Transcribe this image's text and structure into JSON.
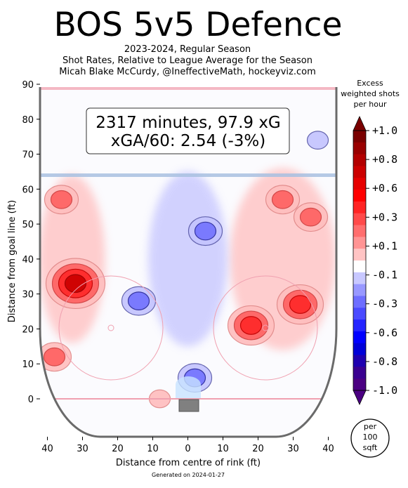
{
  "chart_data": {
    "type": "heatmap",
    "title": "BOS 5v5 Defence",
    "subtitle_lines": [
      "2023-2024, Regular Season",
      "Shot Rates, Relative to League Average for the Season",
      "Micah Blake McCurdy, @IneffectiveMath, hockeyviz.com"
    ],
    "annotation_lines": [
      "2317 minutes, 97.9 xG",
      "xGA/60: 2.54 (-3%)"
    ],
    "xlabel": "Distance from centre of rink (ft)",
    "ylabel": "Distance from goal line (ft)",
    "xlim": [
      -42.5,
      42.5
    ],
    "ylim": [
      -11,
      90
    ],
    "x_ticks": [
      -40,
      -30,
      -20,
      -10,
      0,
      10,
      20,
      30,
      40
    ],
    "x_tick_labels": [
      "40",
      "30",
      "20",
      "10",
      "0",
      "10",
      "20",
      "30",
      "40"
    ],
    "y_ticks": [
      0,
      10,
      20,
      30,
      40,
      50,
      60,
      70,
      80,
      90
    ],
    "y_tick_labels": [
      "0",
      "10",
      "20",
      "30",
      "40",
      "50",
      "60",
      "70",
      "80",
      "90"
    ],
    "grid": false,
    "colorbar": {
      "title_lines": [
        "Excess",
        "weighted shots",
        "per hour"
      ],
      "range": [
        -1.0,
        1.0
      ],
      "tick_values": [
        1.0,
        0.8,
        0.6,
        0.3,
        0.1,
        -0.1,
        -0.3,
        -0.6,
        -0.8,
        -1.0
      ],
      "tick_labels": [
        "+1.0",
        "+0.8",
        "+0.6",
        "+0.3",
        "+0.1",
        "-0.1",
        "-0.3",
        "-0.6",
        "-0.8",
        "-1.0"
      ],
      "colors_top_to_bottom": [
        "#7a0000",
        "#990000",
        "#b30000",
        "#cc0000",
        "#e60000",
        "#ff0000",
        "#ff2424",
        "#ff4a4a",
        "#ff6e6e",
        "#ff9494",
        "#ffc4c4",
        "#ffffff",
        "#c8c8ff",
        "#9898ff",
        "#6e6eff",
        "#4a4aff",
        "#2424ff",
        "#0000ff",
        "#0000d8",
        "#1f00b0",
        "#3a0090",
        "#4b0082"
      ]
    },
    "per_area_lines": [
      "per",
      "100",
      "sqft"
    ],
    "blobs": [
      {
        "x": -32,
        "y": 33,
        "level": 0.8
      },
      {
        "x": -36,
        "y": 57,
        "level": 0.3
      },
      {
        "x": -38,
        "y": 12,
        "level": 0.3
      },
      {
        "x": 18,
        "y": 21,
        "level": 0.6
      },
      {
        "x": 32,
        "y": 27,
        "level": 0.6
      },
      {
        "x": 27,
        "y": 57,
        "level": 0.3
      },
      {
        "x": 35,
        "y": 52,
        "level": 0.3
      },
      {
        "x": -8,
        "y": 0,
        "level": 0.1
      },
      {
        "x": 5,
        "y": 48,
        "level": -0.3
      },
      {
        "x": 2,
        "y": 6,
        "level": -0.3
      },
      {
        "x": 37,
        "y": 74,
        "level": -0.1
      },
      {
        "x": -14,
        "y": 28,
        "level": -0.3
      }
    ],
    "footer": "Generated on 2024-01-27"
  },
  "colors": {
    "rink_line": "#6a6a6a",
    "goal_line": "#f0a0b0",
    "blue_line": "#a8c0e0",
    "net": "#808080",
    "crease": "#c8e4ff"
  }
}
